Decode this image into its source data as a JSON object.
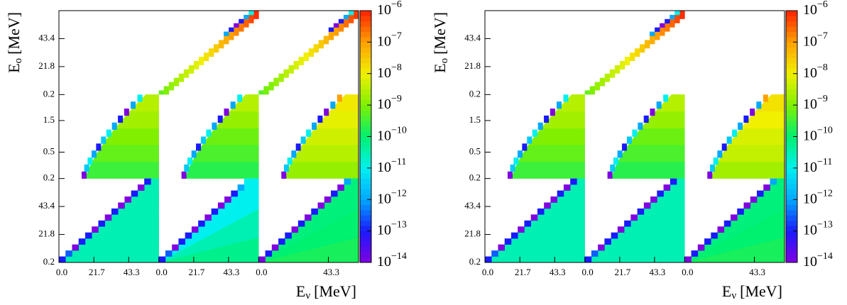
{
  "chart_data": [
    {
      "type": "heatmap",
      "ylabel": {
        "main": "E",
        "sub": "o",
        "unit": "[MeV]"
      },
      "xlabel": {
        "main": "E",
        "sub": "ν",
        "unit": "[MeV]"
      },
      "rows": [
        {
          "ylim": [
            0.2,
            65
          ],
          "log": false,
          "yticks": [
            0.2,
            21.8,
            43.4
          ]
        },
        {
          "ylim": [
            0.2,
            3.7
          ],
          "log": true,
          "yticks": [
            0.2,
            0.5,
            1.5
          ]
        },
        {
          "ylim": [
            0.2,
            65
          ],
          "log": false,
          "yticks": [
            0.2,
            21.8,
            43.4
          ]
        }
      ],
      "columns": [
        {
          "xlim": [
            0,
            62
          ],
          "xticks": [
            {
              "value": 0,
              "label": "0.0"
            },
            21.7,
            43.3
          ]
        },
        {
          "xlim": [
            0,
            62
          ],
          "xticks": [
            {
              "value": 0,
              "label": "0.0"
            },
            21.7,
            43.3
          ]
        },
        {
          "xlim": [
            0,
            62
          ],
          "xticks": [
            {
              "value": 0,
              "label": "0.0"
            },
            43.3
          ]
        }
      ],
      "colorbar": {
        "lim": [
          1e-14,
          1e-06
        ],
        "log": true,
        "colors": [
          "#8000e0",
          "#1a1aff",
          "#00a8ff",
          "#00f0f0",
          "#00f070",
          "#80f000",
          "#f0f000",
          "#ffa000",
          "#ff2000"
        ],
        "ticks": [
          {
            "value": 1e-06,
            "base": "10",
            "exponent": "−6"
          },
          {
            "value": 1e-07,
            "base": "10",
            "exponent": "−7"
          },
          {
            "value": 1e-08,
            "base": "10",
            "exponent": "−8"
          },
          {
            "value": 1e-09,
            "base": "10",
            "exponent": "−9"
          },
          {
            "value": 1e-10,
            "base": "10",
            "exponent": "−10"
          },
          {
            "value": 1e-11,
            "base": "10",
            "exponent": "−11"
          },
          {
            "value": 1e-12,
            "base": "10",
            "exponent": "−12"
          },
          {
            "value": 1e-13,
            "base": "10",
            "exponent": "−13"
          },
          {
            "value": 1e-14,
            "base": "10",
            "exponent": "−14"
          }
        ]
      },
      "blocks": [
        {
          "row": 0,
          "col": 1,
          "shape": "diagonal",
          "values": [
            6e-10,
            1e-09,
            1.5e-09,
            2e-09,
            3e-09,
            4e-09,
            5e-09,
            7e-09,
            1e-08,
            1.5e-08,
            2e-08,
            3e-08,
            5e-08,
            7e-08,
            1e-07,
            1.5e-07,
            2e-07,
            3e-07,
            5e-07,
            8e-07
          ],
          "edge": [
            null,
            null,
            null,
            null,
            null,
            null,
            null,
            null,
            null,
            null,
            null,
            null,
            null,
            1e-12,
            1e-13,
            1e-14,
            1e-13,
            1e-12,
            1e-11,
            null
          ]
        },
        {
          "row": 0,
          "col": 2,
          "shape": "diagonal",
          "values": [
            5e-10,
            8e-10,
            1e-09,
            1.5e-09,
            2e-09,
            3e-09,
            4e-09,
            6e-09,
            8e-09,
            1e-08,
            1.5e-08,
            2e-08,
            3e-08,
            5e-08,
            8e-08,
            1e-07,
            1.5e-07,
            2.5e-07,
            4e-07,
            6e-07
          ],
          "edge": [
            null,
            null,
            null,
            null,
            null,
            null,
            null,
            null,
            null,
            null,
            null,
            null,
            null,
            null,
            1e-13,
            1e-14,
            1e-13,
            1e-12,
            1e-11,
            null
          ]
        },
        {
          "row": 1,
          "col": 0,
          "shape": "quarter",
          "fill": [
            3e-10,
            6e-10,
            1e-09,
            2e-09,
            3e-09
          ],
          "edge": [
            1e-14,
            3e-12,
            1e-11,
            1e-12,
            1e-13,
            3e-12,
            1e-11,
            1e-12,
            1e-13,
            1e-14,
            1e-12,
            1e-11
          ]
        },
        {
          "row": 1,
          "col": 1,
          "shape": "quarter",
          "fill": [
            2e-10,
            4e-10,
            7e-10,
            1.5e-09,
            3e-09
          ],
          "edge": [
            1e-14,
            3e-12,
            1e-11,
            1e-12,
            1e-13,
            3e-12,
            1e-11,
            1e-12,
            1e-13,
            1e-14,
            1e-12,
            1e-11
          ]
        },
        {
          "row": 1,
          "col": 2,
          "shape": "quarter",
          "fill": [
            1.5e-09,
            3e-09,
            5e-09,
            8e-09,
            1.2e-08
          ],
          "edge": [
            1e-14,
            3e-12,
            1e-11,
            1e-12,
            1e-13,
            3e-12,
            1e-11,
            1e-12,
            1e-13,
            1e-14,
            1e-12,
            1e-07
          ]
        },
        {
          "row": 2,
          "col": 0,
          "shape": "triangle",
          "fill": [
            3e-11,
            3e-11,
            3e-11
          ],
          "edge": [
            1e-13,
            3e-13,
            1e-14,
            1e-13,
            1e-13,
            1e-14,
            1e-13,
            1e-14,
            1e-13,
            1e-14,
            1e-14,
            1e-13,
            1e-14,
            1e-13
          ]
        },
        {
          "row": 2,
          "col": 1,
          "shape": "triangle",
          "fill": [
            6e-11,
            3e-11,
            1e-11
          ],
          "edge": [
            1e-13,
            3e-13,
            1e-14,
            1e-13,
            1e-13,
            1e-14,
            1e-13,
            1e-14,
            1e-13,
            1e-14,
            1e-14,
            1e-13,
            1e-12,
            1e-11
          ]
        },
        {
          "row": 2,
          "col": 2,
          "shape": "triangle",
          "fill": [
            1.5e-10,
            1e-10,
            8e-11
          ],
          "edge": [
            1e-14,
            1e-13,
            1e-14,
            1e-13,
            1e-13,
            1e-14,
            1e-13,
            1e-14,
            1e-13,
            1e-14,
            1e-14,
            1e-13,
            1e-14,
            1e-12
          ]
        }
      ]
    },
    {
      "type": "heatmap",
      "ylabel": {
        "main": "E",
        "sub": "o",
        "unit": "[MeV]"
      },
      "xlabel": {
        "main": "E",
        "sub": "ν",
        "unit": "[MeV]"
      },
      "rows": [
        {
          "ylim": [
            0.2,
            65
          ],
          "log": false,
          "yticks": [
            0.2,
            21.8,
            43.4
          ]
        },
        {
          "ylim": [
            0.2,
            3.7
          ],
          "log": true,
          "yticks": [
            0.2,
            0.5,
            1.5
          ]
        },
        {
          "ylim": [
            0.2,
            65
          ],
          "log": false,
          "yticks": [
            0.2,
            21.8,
            43.4
          ]
        }
      ],
      "columns": [
        {
          "xlim": [
            0,
            62
          ],
          "xticks": [
            {
              "value": 0,
              "label": "0.0"
            },
            21.7,
            43.3
          ]
        },
        {
          "xlim": [
            0,
            62
          ],
          "xticks": [
            {
              "value": 0,
              "label": "0.0"
            },
            21.7,
            43.3
          ]
        },
        {
          "xlim": [
            0,
            62
          ],
          "xticks": [
            {
              "value": 0,
              "label": "0.0"
            },
            43.3
          ]
        }
      ],
      "colorbar": {
        "lim": [
          1e-14,
          1e-06
        ],
        "log": true,
        "colors": [
          "#8000e0",
          "#1a1aff",
          "#00a8ff",
          "#00f0f0",
          "#00f070",
          "#80f000",
          "#f0f000",
          "#ffa000",
          "#ff2000"
        ],
        "ticks": [
          {
            "value": 1e-06,
            "base": "10",
            "exponent": "−6"
          },
          {
            "value": 1e-07,
            "base": "10",
            "exponent": "−7"
          },
          {
            "value": 1e-08,
            "base": "10",
            "exponent": "−8"
          },
          {
            "value": 1e-09,
            "base": "10",
            "exponent": "−9"
          },
          {
            "value": 1e-10,
            "base": "10",
            "exponent": "−10"
          },
          {
            "value": 1e-11,
            "base": "10",
            "exponent": "−11"
          },
          {
            "value": 1e-12,
            "base": "10",
            "exponent": "−12"
          },
          {
            "value": 1e-13,
            "base": "10",
            "exponent": "−13"
          },
          {
            "value": 1e-14,
            "base": "10",
            "exponent": "−14"
          }
        ]
      },
      "blocks": [
        {
          "row": 0,
          "col": 1,
          "shape": "diagonal",
          "values": [
            6e-10,
            1e-09,
            1.5e-09,
            2e-09,
            3e-09,
            4e-09,
            5e-09,
            7e-09,
            1e-08,
            1.5e-08,
            2e-08,
            3e-08,
            5e-08,
            7e-08,
            1e-07,
            1.5e-07,
            2e-07,
            3e-07,
            5e-07,
            8e-07
          ],
          "edge": [
            null,
            null,
            null,
            null,
            null,
            null,
            null,
            null,
            null,
            null,
            null,
            null,
            null,
            1e-12,
            1e-13,
            1e-14,
            1e-13,
            1e-12,
            1e-11,
            null
          ]
        },
        {
          "row": 1,
          "col": 0,
          "shape": "quarter",
          "fill": [
            3e-10,
            6e-10,
            1e-09,
            2e-09,
            3e-09
          ],
          "edge": [
            1e-14,
            3e-12,
            1e-11,
            1e-12,
            1e-13,
            3e-12,
            1e-11,
            1e-12,
            1e-13,
            1e-14,
            1e-12,
            1e-11
          ]
        },
        {
          "row": 1,
          "col": 1,
          "shape": "quarter",
          "fill": [
            2e-10,
            4e-10,
            7e-10,
            1.5e-09,
            3e-09
          ],
          "edge": [
            1e-14,
            3e-12,
            1e-11,
            1e-12,
            1e-13,
            3e-12,
            1e-11,
            1e-12,
            1e-13,
            1e-14,
            1e-12,
            1e-11
          ]
        },
        {
          "row": 1,
          "col": 2,
          "shape": "quarter",
          "fill": [
            2e-09,
            4e-09,
            6e-09,
            1e-08,
            1.5e-08
          ],
          "edge": [
            1e-14,
            3e-12,
            1e-11,
            1e-12,
            1e-13,
            3e-12,
            1e-11,
            1e-12,
            1e-13,
            1e-14,
            1e-12,
            1e-07
          ]
        },
        {
          "row": 2,
          "col": 0,
          "shape": "triangle",
          "fill": [
            3e-11,
            3e-11,
            3e-11
          ],
          "edge": [
            1e-13,
            3e-13,
            1e-14,
            1e-13,
            1e-13,
            1e-14,
            1e-13,
            1e-14,
            1e-13,
            1e-14,
            1e-14,
            1e-13,
            1e-14,
            1e-13
          ]
        },
        {
          "row": 2,
          "col": 1,
          "shape": "triangle",
          "fill": [
            3e-11,
            3e-11,
            3e-11
          ],
          "edge": [
            1e-13,
            3e-13,
            1e-14,
            1e-13,
            1e-13,
            1e-14,
            1e-13,
            1e-14,
            1e-13,
            1e-14,
            1e-14,
            1e-13,
            1e-14,
            1e-13
          ]
        },
        {
          "row": 2,
          "col": 2,
          "shape": "triangle",
          "fill": [
            1.5e-10,
            1e-10,
            8e-11
          ],
          "edge": [
            1e-14,
            1e-13,
            1e-14,
            1e-13,
            1e-13,
            1e-14,
            1e-13,
            1e-14,
            1e-13,
            1e-14,
            1e-14,
            1e-13,
            1e-14,
            1e-12
          ]
        }
      ]
    }
  ]
}
